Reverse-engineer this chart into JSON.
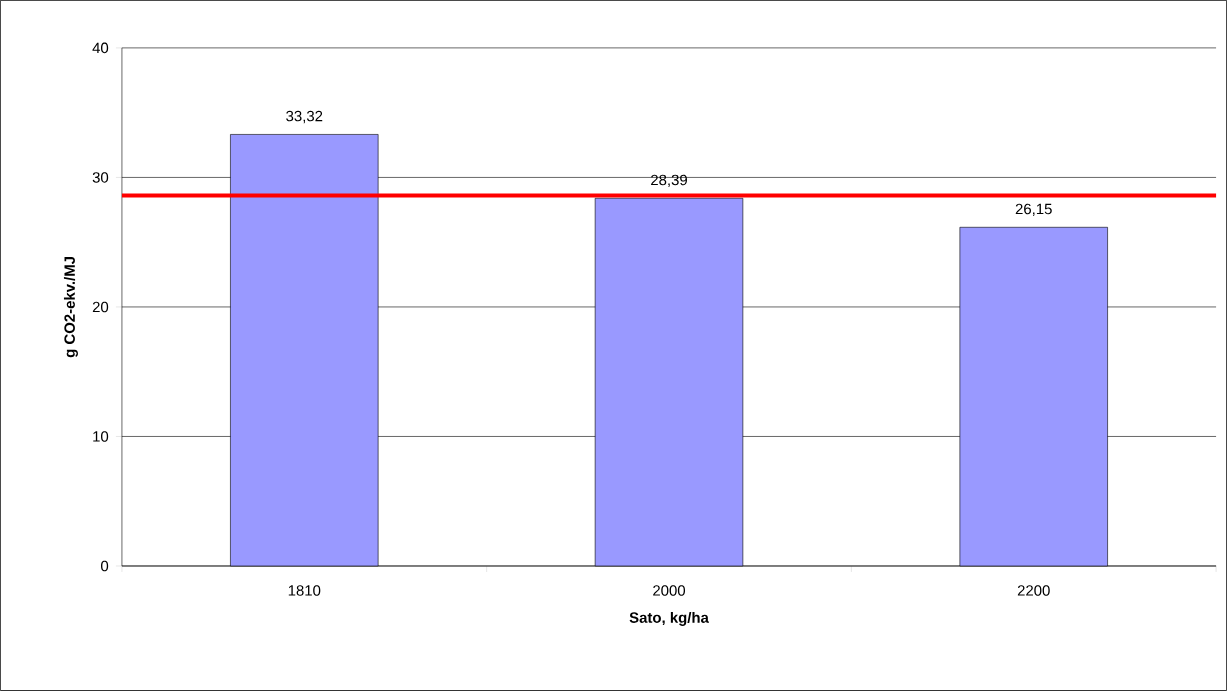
{
  "chart_data": {
    "type": "bar",
    "xlabel": "Sato, kg/ha",
    "ylabel": "g CO2-ekv./MJ",
    "categories": [
      "1810",
      "2000",
      "2200"
    ],
    "values": [
      33.32,
      28.39,
      26.15
    ],
    "value_labels": [
      "33,32",
      "28,39",
      "26,15"
    ],
    "color": "#9999ff",
    "ylim": [
      0,
      40
    ],
    "yticks": [
      0,
      10,
      20,
      30,
      40
    ],
    "grid": "y",
    "ref_lines": [
      {
        "axis": "y",
        "value": 28.6,
        "color": "#ff0000"
      }
    ]
  }
}
